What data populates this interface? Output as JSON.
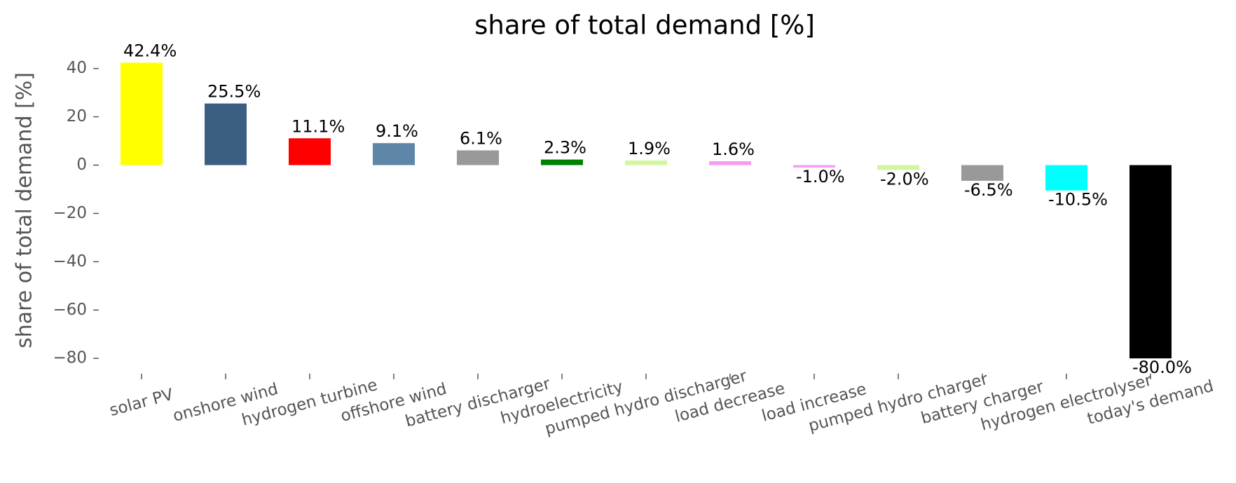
{
  "chart_data": {
    "type": "bar",
    "title": "share of total demand [%]",
    "ylabel": "share of total demand [%]",
    "categories": [
      "solar PV",
      "onshore wind",
      "hydrogen turbine",
      "offshore wind",
      "battery discharger",
      "hydroelectricity",
      "pumped hydro discharger",
      "load decrease",
      "load increase",
      "pumped hydro charger",
      "battery charger",
      "hydrogen electrolyser",
      "today's demand"
    ],
    "values": [
      42.4,
      25.5,
      11.1,
      9.1,
      6.1,
      2.3,
      1.9,
      1.6,
      -1.0,
      -2.0,
      -6.5,
      -10.5,
      -80.0
    ],
    "value_labels": [
      "42.4%",
      "25.5%",
      "11.1%",
      "9.1%",
      "6.1%",
      "2.3%",
      "1.9%",
      "1.6%",
      "-1.0%",
      "-2.0%",
      "-6.5%",
      "-10.5%",
      "-80.0%"
    ],
    "colors": [
      "#ffff00",
      "#3b5f82",
      "#ff0000",
      "#5f86a8",
      "#999999",
      "#008000",
      "#d4f5a0",
      "#f79cf0",
      "#f79cf0",
      "#d4f5a0",
      "#999999",
      "#00ffff",
      "#000000"
    ],
    "ylim": [
      -84,
      46
    ],
    "yticks": [
      {
        "value": 40,
        "label": "40"
      },
      {
        "value": 20,
        "label": "20"
      },
      {
        "value": 0,
        "label": "0"
      },
      {
        "value": -20,
        "label": "−20"
      },
      {
        "value": -40,
        "label": "−40"
      },
      {
        "value": -60,
        "label": "−60"
      },
      {
        "value": -80,
        "label": "−80"
      }
    ]
  }
}
